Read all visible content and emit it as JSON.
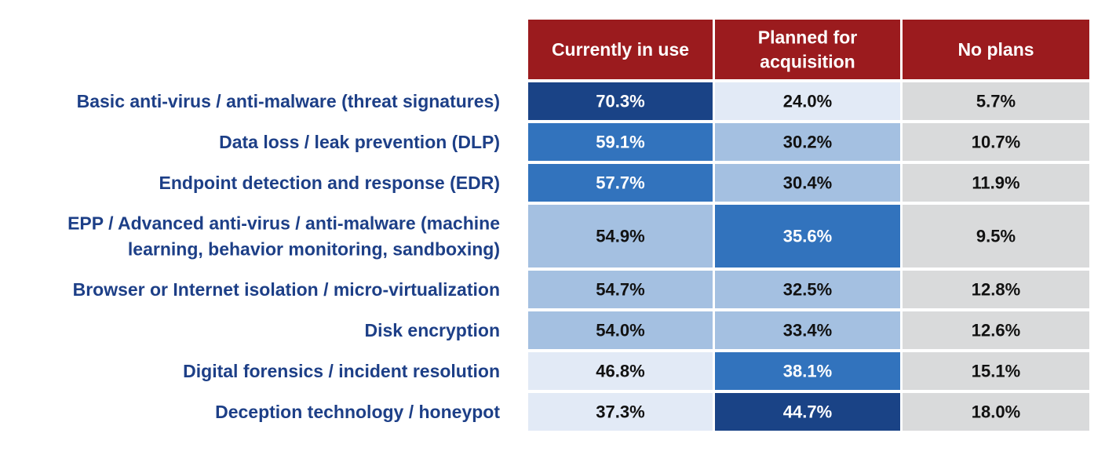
{
  "chart_data": {
    "type": "heatmap",
    "title": "",
    "columns": [
      {
        "lines": [
          "Currently in use"
        ]
      },
      {
        "lines": [
          "Planned for",
          "acquisition"
        ]
      },
      {
        "lines": [
          "No plans"
        ]
      }
    ],
    "rows": [
      {
        "lines": [
          "Basic anti-virus / anti-malware (threat signatures)"
        ],
        "values": [
          "70.3%",
          "24.0%",
          "5.7%"
        ],
        "shade": [
          "dark",
          "pale",
          "gray"
        ]
      },
      {
        "lines": [
          "Data loss / leak prevention (DLP)"
        ],
        "values": [
          "59.1%",
          "30.2%",
          "10.7%"
        ],
        "shade": [
          "mid",
          "light",
          "gray"
        ]
      },
      {
        "lines": [
          "Endpoint detection and response (EDR)"
        ],
        "values": [
          "57.7%",
          "30.4%",
          "11.9%"
        ],
        "shade": [
          "mid",
          "light",
          "gray"
        ]
      },
      {
        "lines": [
          "EPP / Advanced anti-virus / anti-malware (machine",
          "learning, behavior monitoring, sandboxing)"
        ],
        "values": [
          "54.9%",
          "35.6%",
          "9.5%"
        ],
        "shade": [
          "light",
          "mid",
          "gray"
        ]
      },
      {
        "lines": [
          "Browser or Internet isolation / micro-virtualization"
        ],
        "values": [
          "54.7%",
          "32.5%",
          "12.8%"
        ],
        "shade": [
          "light",
          "light",
          "gray"
        ]
      },
      {
        "lines": [
          "Disk encryption"
        ],
        "values": [
          "54.0%",
          "33.4%",
          "12.6%"
        ],
        "shade": [
          "light",
          "light",
          "gray"
        ]
      },
      {
        "lines": [
          "Digital forensics / incident resolution"
        ],
        "values": [
          "46.8%",
          "38.1%",
          "15.1%"
        ],
        "shade": [
          "pale",
          "mid",
          "gray"
        ]
      },
      {
        "lines": [
          "Deception technology / honeypot"
        ],
        "values": [
          "37.3%",
          "44.7%",
          "18.0%"
        ],
        "shade": [
          "pale",
          "dark",
          "gray"
        ]
      }
    ],
    "colors": {
      "header_bg": "#9b1b1e",
      "header_text": "#ffffff",
      "label_text": "#1d3f87",
      "dark": "#1a4386",
      "mid": "#3273bd",
      "light": "#a4c0e1",
      "pale": "#e2eaf6",
      "gray": "#d9dadb",
      "text_on_dark": "#ffffff",
      "text_on_light": "#111111"
    }
  }
}
